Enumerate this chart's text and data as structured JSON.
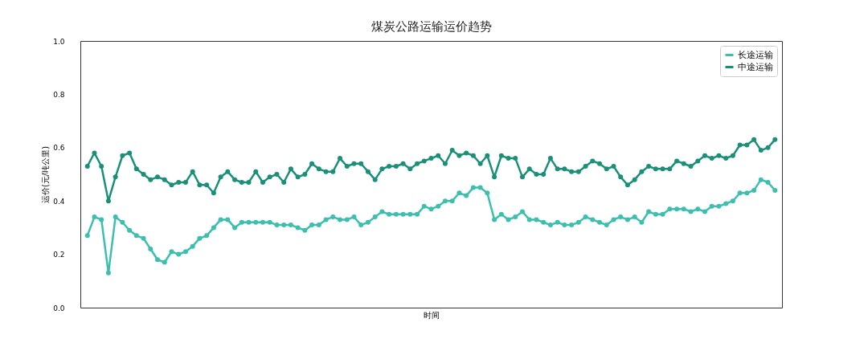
{
  "chart_data": {
    "type": "line",
    "title": "煤炭公路运输运价趋势",
    "xlabel": "时间",
    "ylabel": "运价(元/吨公里)",
    "categories": [
      null,
      null,
      null,
      null,
      null,
      null,
      null,
      null,
      null,
      null,
      null,
      null,
      null,
      null,
      null,
      null,
      null,
      null,
      null,
      null,
      null,
      null,
      null,
      null,
      null,
      null,
      null,
      null,
      null,
      null,
      null,
      null,
      null,
      null,
      null,
      null,
      null,
      null,
      null,
      null,
      null,
      null,
      null,
      null,
      null,
      null,
      null,
      null,
      null,
      null,
      null,
      null,
      null,
      null,
      null,
      null,
      null,
      null,
      null,
      null,
      null,
      null,
      null,
      null,
      null,
      null,
      null,
      null,
      null,
      null,
      null,
      null,
      null,
      null,
      null,
      null,
      null,
      null,
      null,
      null,
      null,
      null,
      null,
      null,
      null,
      null,
      null,
      null,
      null,
      null,
      null,
      null,
      null,
      null,
      null,
      null,
      null,
      null,
      null
    ],
    "series": [
      {
        "name": "长途运输",
        "color": "#3cbfae",
        "values": [
          0.27,
          0.34,
          0.33,
          0.13,
          0.34,
          0.32,
          0.29,
          0.27,
          0.26,
          0.22,
          0.18,
          0.17,
          0.21,
          0.2,
          0.21,
          0.23,
          0.26,
          0.27,
          0.3,
          0.33,
          0.33,
          0.3,
          0.32,
          0.32,
          0.32,
          0.32,
          0.32,
          0.31,
          0.31,
          0.31,
          0.3,
          0.29,
          0.31,
          0.31,
          0.33,
          0.34,
          0.33,
          0.33,
          0.34,
          0.31,
          0.32,
          0.34,
          0.36,
          0.35,
          0.35,
          0.35,
          0.35,
          0.35,
          0.38,
          0.37,
          0.38,
          0.4,
          0.4,
          0.43,
          0.42,
          0.45,
          0.45,
          0.43,
          0.33,
          0.35,
          0.33,
          0.34,
          0.36,
          0.33,
          0.33,
          0.32,
          0.31,
          0.32,
          0.31,
          0.31,
          0.32,
          0.34,
          0.33,
          0.32,
          0.31,
          0.33,
          0.34,
          0.33,
          0.34,
          0.32,
          0.36,
          0.35,
          0.35,
          0.37,
          0.37,
          0.37,
          0.36,
          0.37,
          0.36,
          0.38,
          0.38,
          0.39,
          0.4,
          0.43,
          0.43,
          0.44,
          0.48,
          0.47,
          0.44
        ]
      },
      {
        "name": "中途运输",
        "color": "#1a9079",
        "values": [
          0.53,
          0.58,
          0.53,
          0.4,
          0.49,
          0.57,
          0.58,
          0.52,
          0.5,
          0.48,
          0.49,
          0.48,
          0.46,
          0.47,
          0.47,
          0.51,
          0.46,
          0.46,
          0.43,
          0.49,
          0.51,
          0.48,
          0.47,
          0.47,
          0.51,
          0.47,
          0.49,
          0.5,
          0.47,
          0.52,
          0.49,
          0.5,
          0.54,
          0.52,
          0.51,
          0.51,
          0.56,
          0.53,
          0.54,
          0.54,
          0.51,
          0.48,
          0.52,
          0.53,
          0.53,
          0.54,
          0.52,
          0.54,
          0.55,
          0.56,
          0.57,
          0.54,
          0.59,
          0.57,
          0.58,
          0.57,
          0.54,
          0.57,
          0.49,
          0.57,
          0.56,
          0.56,
          0.49,
          0.52,
          0.5,
          0.5,
          0.56,
          0.52,
          0.52,
          0.51,
          0.51,
          0.53,
          0.55,
          0.54,
          0.52,
          0.53,
          0.49,
          0.46,
          0.48,
          0.51,
          0.53,
          0.52,
          0.52,
          0.52,
          0.55,
          0.54,
          0.53,
          0.55,
          0.57,
          0.56,
          0.57,
          0.56,
          0.57,
          0.61,
          0.61,
          0.63,
          0.59,
          0.6,
          0.63
        ]
      }
    ],
    "ylim": [
      0,
      1
    ],
    "yticks": [
      {
        "value": 0,
        "label": "0.0"
      },
      {
        "value": 0.2,
        "label": "0.2"
      },
      {
        "value": 0.4,
        "label": "0.4"
      },
      {
        "value": 0.6,
        "label": "0.6"
      },
      {
        "value": 0.8,
        "label": "0.8"
      },
      {
        "value": 1,
        "label": "1.0"
      }
    ],
    "tick_labels": "y",
    "legend": "top right",
    "marker": "circle",
    "line_style": "solid",
    "grid": false
  }
}
